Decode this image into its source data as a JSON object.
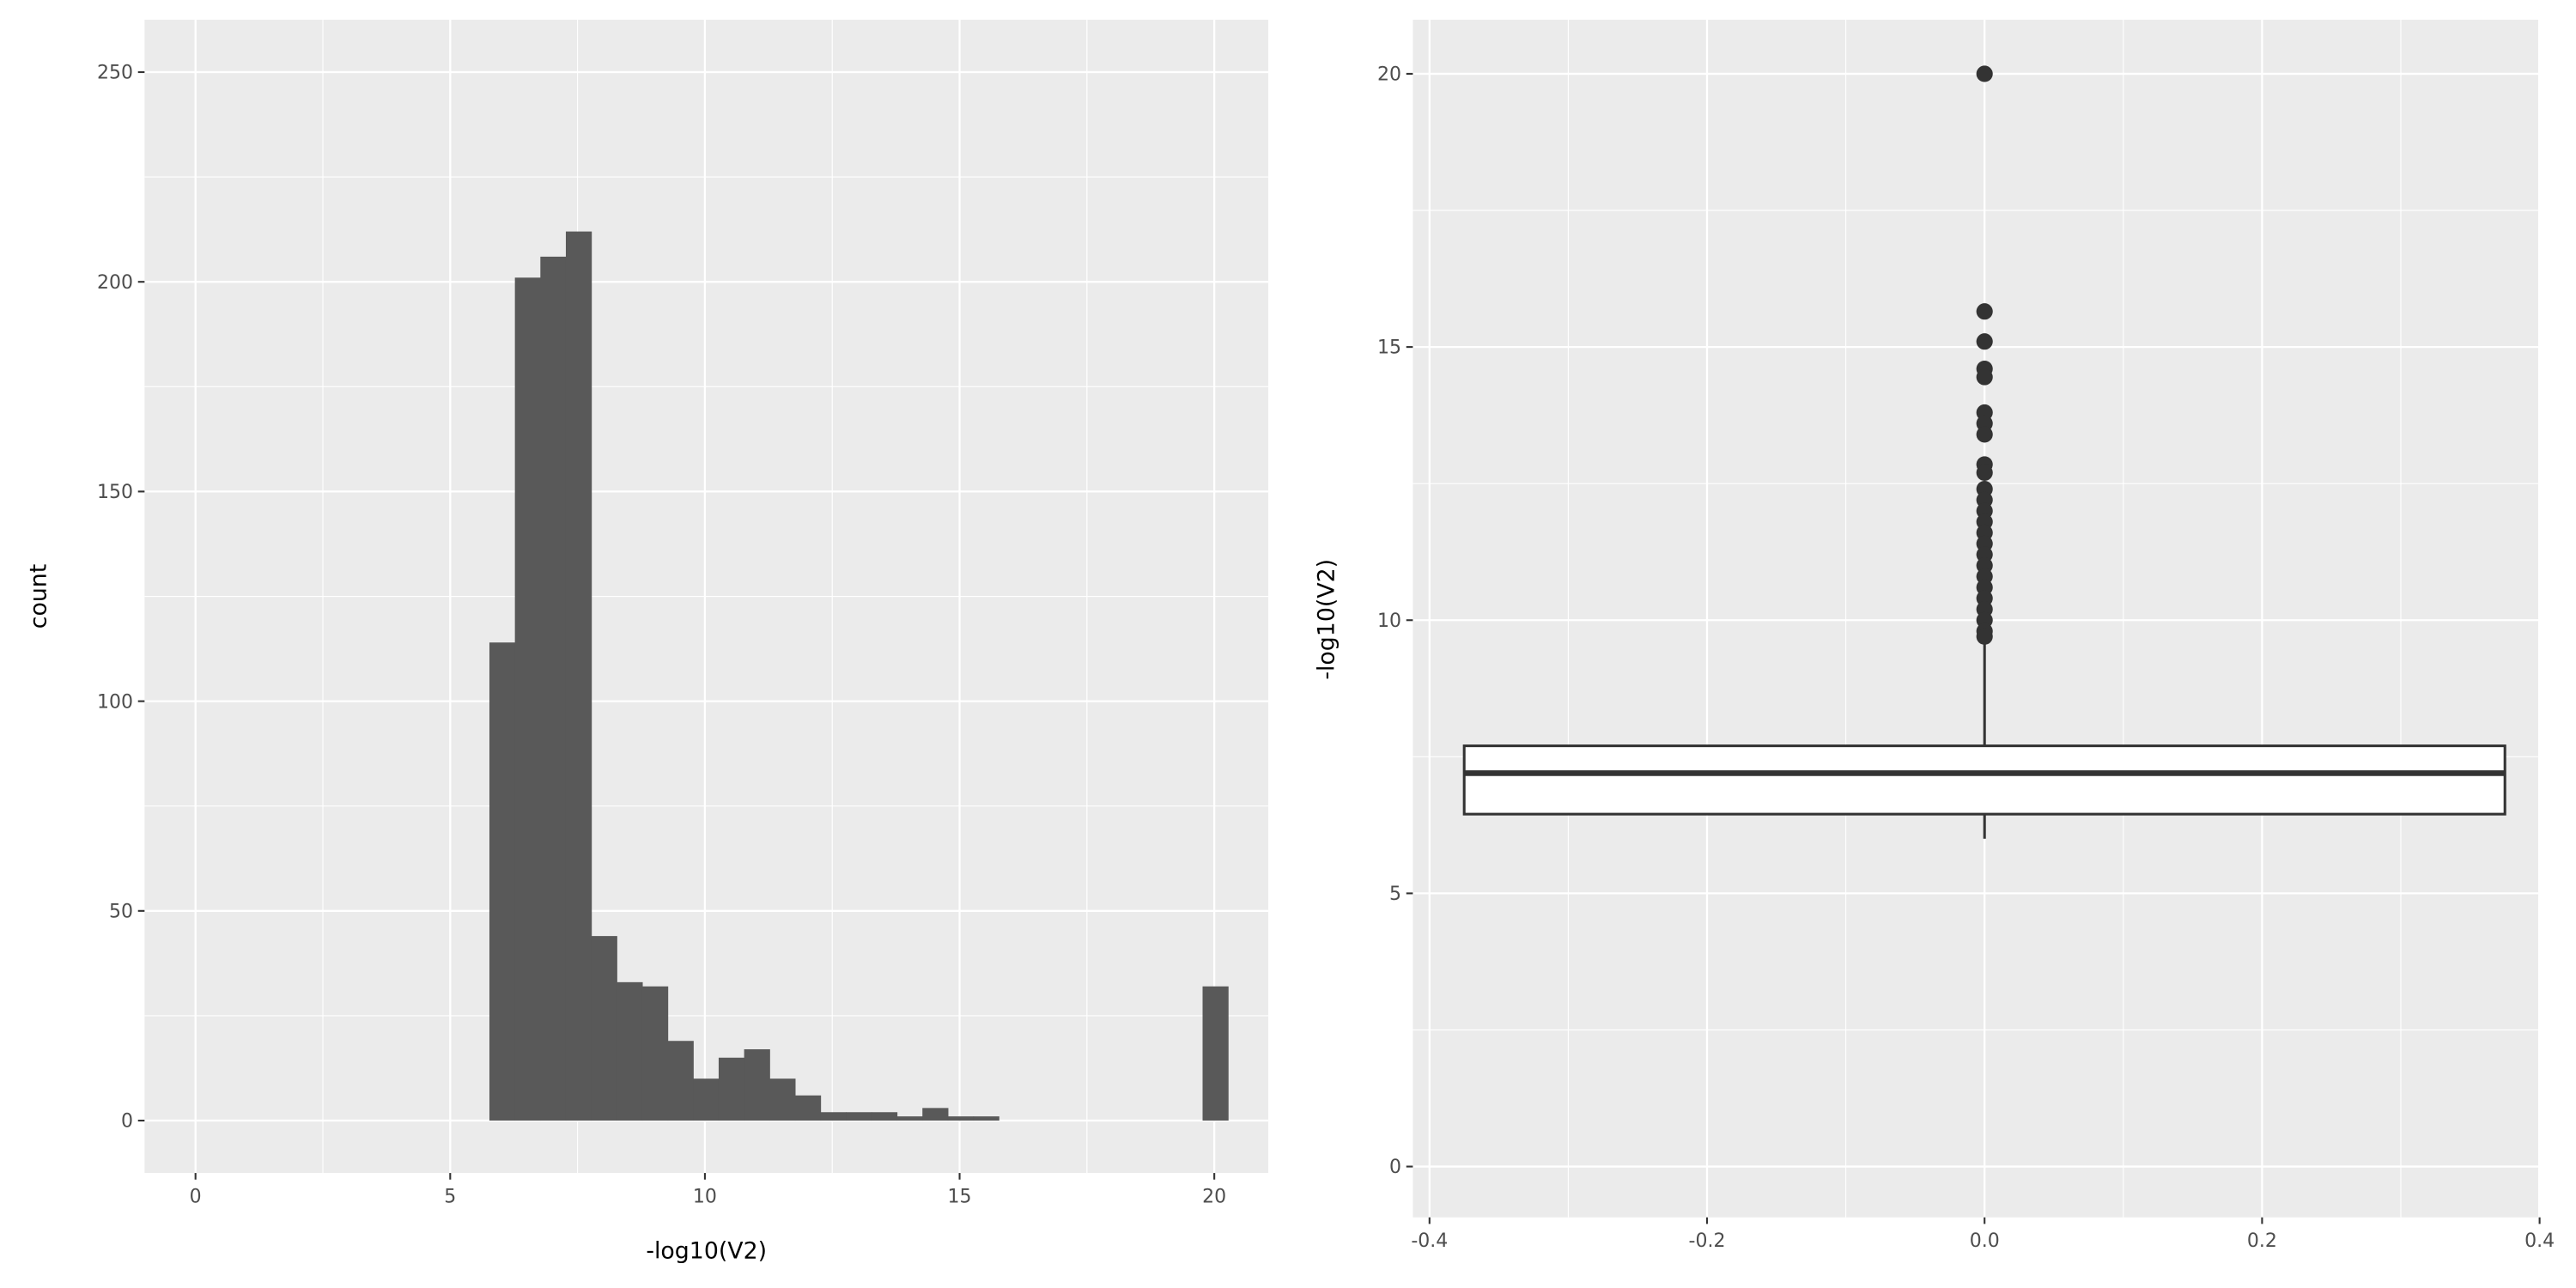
{
  "colors": {
    "panel": "#ebebeb",
    "grid": "#ffffff",
    "bar": "#595959",
    "box_line": "#333333",
    "box_fill": "#ffffff"
  },
  "chart_data": [
    {
      "type": "bar",
      "subtype": "histogram",
      "xlabel": "-log10(V2)",
      "ylabel": "count",
      "xlim": [
        -1.0,
        21.06
      ],
      "ylim": [
        -12.5,
        262.5
      ],
      "xticks": [
        0,
        5,
        10,
        15,
        20
      ],
      "yticks": [
        0,
        50,
        100,
        150,
        200,
        250
      ],
      "grid": true,
      "bin_width": 0.5,
      "bins": [
        {
          "x0": 5.77,
          "count": 114
        },
        {
          "x0": 6.27,
          "count": 201
        },
        {
          "x0": 6.77,
          "count": 206
        },
        {
          "x0": 7.27,
          "count": 212
        },
        {
          "x0": 7.77,
          "count": 44
        },
        {
          "x0": 8.27,
          "count": 33
        },
        {
          "x0": 8.77,
          "count": 32
        },
        {
          "x0": 9.27,
          "count": 19
        },
        {
          "x0": 9.77,
          "count": 10
        },
        {
          "x0": 10.27,
          "count": 15
        },
        {
          "x0": 10.77,
          "count": 17
        },
        {
          "x0": 11.27,
          "count": 10
        },
        {
          "x0": 11.77,
          "count": 6
        },
        {
          "x0": 12.27,
          "count": 2
        },
        {
          "x0": 12.77,
          "count": 2
        },
        {
          "x0": 13.27,
          "count": 2
        },
        {
          "x0": 13.77,
          "count": 1
        },
        {
          "x0": 14.27,
          "count": 3
        },
        {
          "x0": 14.77,
          "count": 1
        },
        {
          "x0": 15.27,
          "count": 1
        },
        {
          "x0": 19.77,
          "count": 32
        }
      ]
    },
    {
      "type": "boxplot",
      "xlabel": "",
      "ylabel": "-log10(V2)",
      "xlim": [
        -0.412,
        0.399
      ],
      "ylim": [
        -0.93,
        20.99
      ],
      "xticks": [
        "-0.4",
        "-0.2",
        "0.0",
        "0.2",
        "0.4"
      ],
      "xtick_values": [
        -0.4,
        -0.2,
        0,
        0.2,
        0.4
      ],
      "yticks": [
        0,
        5,
        10,
        15,
        20
      ],
      "grid": true,
      "box": {
        "x": 0,
        "half_width": 0.375,
        "whisker_low": 6.0,
        "q1": 6.45,
        "median": 7.2,
        "q3": 7.7,
        "whisker_high": 9.65
      },
      "outliers": [
        20,
        15.65,
        15.1,
        14.6,
        14.45,
        13.8,
        13.6,
        13.4,
        12.85,
        12.7,
        12.4,
        12.2,
        12.0,
        11.8,
        11.6,
        11.4,
        11.2,
        11.0,
        10.8,
        10.6,
        10.4,
        10.2,
        10.0,
        9.8,
        9.7
      ]
    }
  ]
}
